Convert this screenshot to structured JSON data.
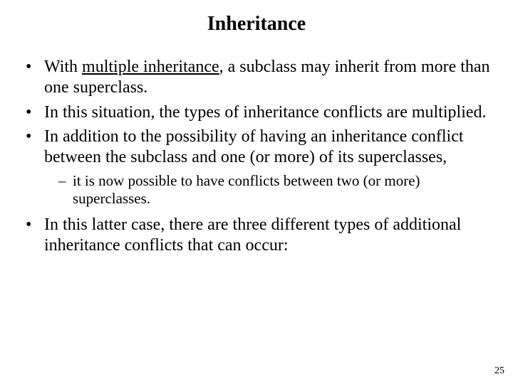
{
  "title": "Inheritance",
  "bullets": {
    "b1_pre": "With ",
    "b1_underline": "multiple inheritance",
    "b1_post": ", a subclass may inherit from more than one superclass.",
    "b2": "In this situation, the types of inheritance conflicts are multiplied.",
    "b3": "In addition to the possibility of having an inheritance conflict between the subclass and one (or more) of its superclasses,",
    "b3_sub1": "it is now possible to have conflicts between two (or more) superclasses.",
    "b4": "In this latter case, there are three different types of additional inheritance conflicts that can occur:"
  },
  "page_number": "25",
  "style": {
    "title_fontsize": 28,
    "body_fontsize": 24,
    "sub_fontsize": 21,
    "pagenum_fontsize": 14,
    "text_color": "#000000",
    "background_color": "#ffffff"
  }
}
